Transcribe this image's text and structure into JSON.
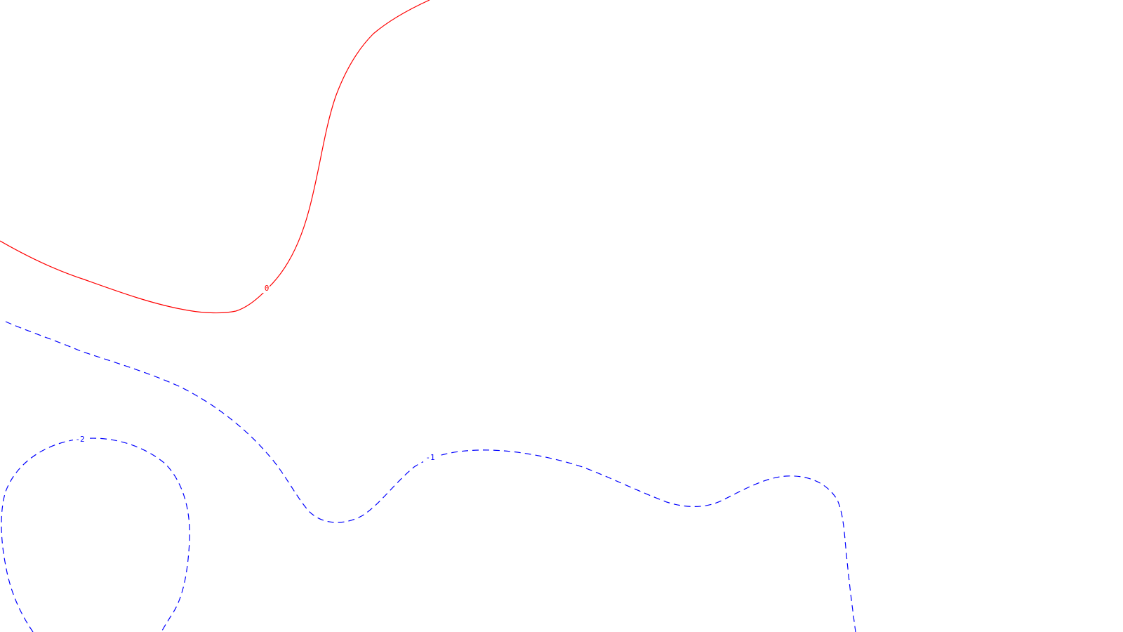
{
  "map": {
    "background_color": "#ffffff",
    "contours": [
      {
        "id": "contour-0",
        "label": "0",
        "color": "#ff0000",
        "style": "solid"
      },
      {
        "id": "contour-minus-1",
        "label": "-1",
        "color": "#0000ff",
        "style": "dashed"
      },
      {
        "id": "contour-minus-2",
        "label": "-2",
        "color": "#0000ff",
        "style": "dashed"
      }
    ]
  }
}
